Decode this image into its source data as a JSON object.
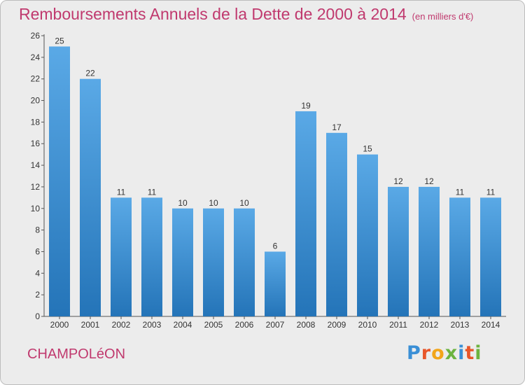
{
  "title": {
    "main": "Remboursements Annuels de la Dette de 2000 à 2014",
    "unit": "(en milliers d'€)"
  },
  "commune": "CHAMPOLéON",
  "logo": {
    "text": "Proxiti",
    "letter_colors": [
      "#3a8fd6",
      "#e8562a",
      "#f2a51a",
      "#6cb33f",
      "#3a8fd6",
      "#e8562a",
      "#6cb33f"
    ]
  },
  "colors": {
    "title": "#c0396e",
    "bar_light": "#5aa9e6",
    "bar_dark": "#2474b8",
    "background": "#ececec"
  },
  "chart_data": {
    "type": "bar",
    "categories": [
      "2000",
      "2001",
      "2002",
      "2003",
      "2004",
      "2005",
      "2006",
      "2007",
      "2008",
      "2009",
      "2010",
      "2011",
      "2012",
      "2013",
      "2014"
    ],
    "values": [
      25,
      22,
      11,
      11,
      10,
      10,
      10,
      6,
      19,
      17,
      15,
      12,
      12,
      11,
      11
    ],
    "ylim": [
      0,
      26
    ],
    "yticks": [
      0,
      2,
      4,
      6,
      8,
      10,
      12,
      14,
      16,
      18,
      20,
      22,
      24,
      26
    ],
    "grid": false,
    "data_labels": true
  }
}
